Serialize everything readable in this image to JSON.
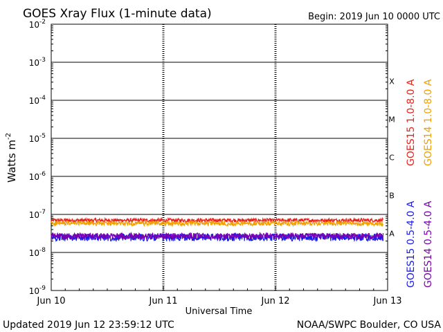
{
  "chart_data": {
    "type": "line",
    "title": "GOES Xray Flux (1-minute data)",
    "begin_label": "Begin:  2019 Jun 10 0000 UTC",
    "xlabel": "Universal Time",
    "ylabel": "Watts m",
    "ylabel_exp": "-2",
    "y_scale": "log",
    "ylim": [
      1e-09,
      0.01
    ],
    "y_ticks": [
      {
        "value": 1e-09,
        "mantissa": "10",
        "exp": "-9"
      },
      {
        "value": 1e-08,
        "mantissa": "10",
        "exp": "-8"
      },
      {
        "value": 1e-07,
        "mantissa": "10",
        "exp": "-7"
      },
      {
        "value": 1e-06,
        "mantissa": "10",
        "exp": "-6"
      },
      {
        "value": 1e-05,
        "mantissa": "10",
        "exp": "-5"
      },
      {
        "value": 0.0001,
        "mantissa": "10",
        "exp": "-4"
      },
      {
        "value": 0.001,
        "mantissa": "10",
        "exp": "-3"
      },
      {
        "value": 0.01,
        "mantissa": "10",
        "exp": "-2"
      }
    ],
    "x_ticks": [
      "Jun 10",
      "Jun 11",
      "Jun 12",
      "Jun 13"
    ],
    "flare_classes": [
      {
        "label": "A",
        "value": 1e-08
      },
      {
        "label": "B",
        "value": 1e-07
      },
      {
        "label": "C",
        "value": 1e-06
      },
      {
        "label": "M",
        "value": 1e-05
      },
      {
        "label": "X",
        "value": 0.0001
      }
    ],
    "series": [
      {
        "name": "GOES15 1.0-8.0 A",
        "color": "#e8201a",
        "level": 7e-08,
        "noise": 0.05,
        "end_day": 2.96
      },
      {
        "name": "GOES14 1.0-8.0 A",
        "color": "#f0a000",
        "level": 5.8e-08,
        "noise": 0.06,
        "end_day": 2.96
      },
      {
        "name": "GOES15 0.5-4.0 A",
        "color": "#1a1ae8",
        "level": 2.5e-08,
        "noise": 0.1,
        "end_day": 2.96
      },
      {
        "name": "GOES14 0.5-4.0 A",
        "color": "#7a00b4",
        "level": 2.7e-08,
        "noise": 0.08,
        "end_day": 2.96
      }
    ],
    "grid": true
  },
  "footer": {
    "updated": "Updated 2019 Jun 12 23:59:12 UTC",
    "credit": "NOAA/SWPC Boulder, CO USA"
  }
}
